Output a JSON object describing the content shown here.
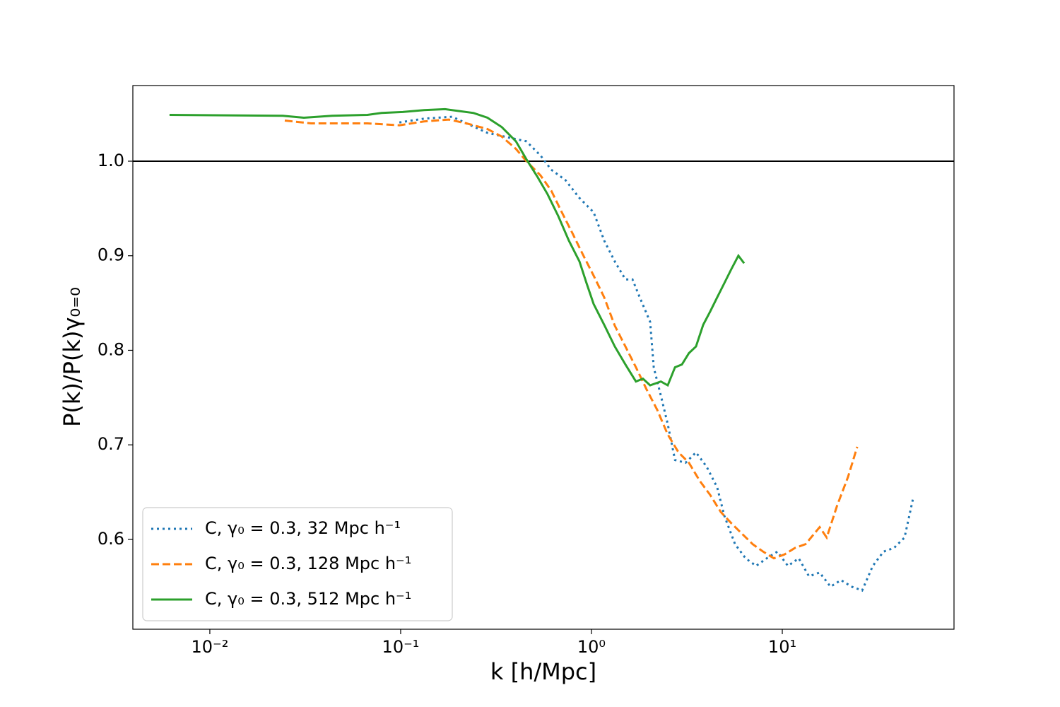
{
  "chart_data": {
    "type": "line",
    "xlabel": "k [h/Mpc]",
    "ylabel": "P(k)/P(k)γ₀₌₀",
    "xscale": "log",
    "xlim": [
      0.00395,
      79.4
    ],
    "ylim": [
      0.505,
      1.08
    ],
    "xticks": [
      {
        "value": 0.01,
        "label": "10⁻²"
      },
      {
        "value": 0.1,
        "label": "10⁻¹"
      },
      {
        "value": 1,
        "label": "10⁰"
      },
      {
        "value": 10,
        "label": "10¹"
      }
    ],
    "yticks": [
      0.6,
      0.7,
      0.8,
      0.9,
      {
        "value": 1,
        "label": "1.0"
      }
    ],
    "hline": 1,
    "hline_color": "#000000",
    "legend": "lower left",
    "series": [
      {
        "name": "C, γ₀ = 0.3, 32 Mpc h⁻¹",
        "color": "#1f77b4",
        "linestyle": "dotted",
        "x": [
          0.0984,
          0.1325,
          0.186,
          0.221,
          0.285,
          0.369,
          0.456,
          0.541,
          0.615,
          0.73,
          0.865,
          1.026,
          1.166,
          1.325,
          1.506,
          1.64,
          1.79,
          2.03,
          2.12,
          2.31,
          2.51,
          2.74,
          3.11,
          3.53,
          4.01,
          4.56,
          4.97,
          5.65,
          6.42,
          7.29,
          8.29,
          9.42,
          10.7,
          12.2,
          13.8,
          15.7,
          17.9,
          20.3,
          23.1,
          26.2,
          29.8,
          33.9,
          38.5,
          43.7,
          48.4
        ],
        "values": [
          1.041,
          1.045,
          1.047,
          1.04,
          1.03,
          1.025,
          1.021,
          1.006,
          0.991,
          0.98,
          0.961,
          0.946,
          0.916,
          0.894,
          0.875,
          0.875,
          0.856,
          0.83,
          0.782,
          0.752,
          0.722,
          0.684,
          0.681,
          0.692,
          0.677,
          0.655,
          0.625,
          0.595,
          0.58,
          0.572,
          0.58,
          0.587,
          0.572,
          0.58,
          0.561,
          0.565,
          0.55,
          0.557,
          0.55,
          0.546,
          0.572,
          0.587,
          0.591,
          0.602,
          0.643
        ]
      },
      {
        "name": "C, γ₀ = 0.3, 128 Mpc h⁻¹",
        "color": "#ff7f0e",
        "linestyle": "dashed",
        "x": [
          0.0247,
          0.0339,
          0.0476,
          0.067,
          0.0984,
          0.1325,
          0.179,
          0.221,
          0.285,
          0.339,
          0.402,
          0.456,
          0.541,
          0.615,
          0.699,
          0.794,
          0.903,
          1.026,
          1.166,
          1.325,
          1.506,
          1.71,
          1.94,
          2.21,
          2.51,
          2.86,
          3.24,
          3.69,
          4.19,
          4.76,
          5.41,
          6.15,
          6.99,
          7.94,
          9.03,
          10.26,
          11.66,
          13.25,
          15.7,
          17.1,
          19.4,
          22.1,
          24.7
        ],
        "values": [
          1.043,
          1.04,
          1.04,
          1.04,
          1.038,
          1.042,
          1.044,
          1.04,
          1.034,
          1.026,
          1.013,
          1.0,
          0.985,
          0.969,
          0.946,
          0.924,
          0.901,
          0.879,
          0.856,
          0.826,
          0.804,
          0.782,
          0.759,
          0.737,
          0.711,
          0.692,
          0.681,
          0.662,
          0.647,
          0.629,
          0.617,
          0.606,
          0.595,
          0.587,
          0.58,
          0.584,
          0.591,
          0.595,
          0.613,
          0.602,
          0.636,
          0.666,
          0.698
        ]
      },
      {
        "name": "C, γ₀ = 0.3, 512 Mpc h⁻¹",
        "color": "#2ca02c",
        "linestyle": "solid",
        "x": [
          0.00615,
          0.0241,
          0.0311,
          0.0437,
          0.067,
          0.0794,
          0.1026,
          0.1325,
          0.171,
          0.203,
          0.241,
          0.285,
          0.339,
          0.402,
          0.456,
          0.519,
          0.589,
          0.67,
          0.761,
          0.865,
          0.942,
          1.026,
          1.166,
          1.325,
          1.506,
          1.71,
          1.86,
          2.03,
          2.31,
          2.51,
          2.74,
          2.98,
          3.24,
          3.53,
          3.85,
          4.19,
          4.56,
          4.97,
          5.41,
          5.89,
          6.31
        ],
        "values": [
          1.049,
          1.048,
          1.046,
          1.048,
          1.049,
          1.051,
          1.052,
          1.054,
          1.055,
          1.053,
          1.051,
          1.046,
          1.036,
          1.021,
          1.002,
          0.984,
          0.965,
          0.942,
          0.916,
          0.894,
          0.871,
          0.849,
          0.827,
          0.804,
          0.785,
          0.767,
          0.77,
          0.763,
          0.767,
          0.763,
          0.782,
          0.785,
          0.797,
          0.804,
          0.827,
          0.841,
          0.856,
          0.871,
          0.886,
          0.9,
          0.892
        ]
      }
    ]
  }
}
